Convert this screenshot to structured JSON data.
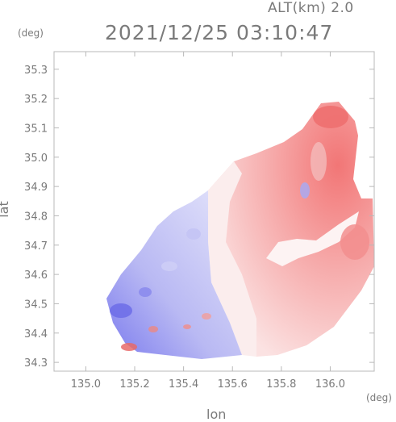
{
  "header": {
    "altitude_label": "ALT(km) 2.0",
    "timestamp": "2021/12/25 03:10:47"
  },
  "axes": {
    "x_unit": "(deg)",
    "y_unit": "(deg)",
    "xlabel": "lon",
    "ylabel": "lat",
    "x_ticks": [
      "135.0",
      "135.2",
      "135.4",
      "135.6",
      "135.8",
      "136.0"
    ],
    "y_ticks": [
      "35.3",
      "35.2",
      "35.1",
      "35.0",
      "34.9",
      "34.8",
      "34.7",
      "34.6",
      "34.5",
      "34.4",
      "34.3"
    ]
  },
  "map": {
    "type": "doppler-velocity-field",
    "xlim": [
      134.87,
      136.18
    ],
    "ylim": [
      34.27,
      35.36
    ],
    "colors": {
      "approaching": "#7d7df0",
      "receding": "#f27c7c",
      "near_zero": "#f2f2fb",
      "frame": "#b8b8b8"
    }
  }
}
